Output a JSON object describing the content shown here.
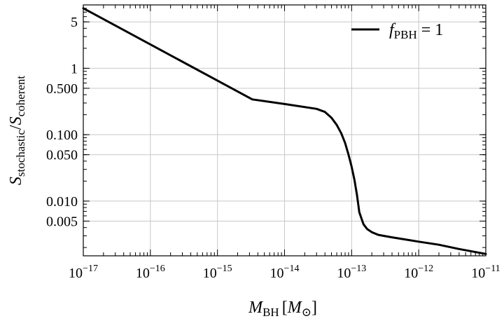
{
  "chart_data": {
    "type": "line",
    "x_scale": "log",
    "y_scale": "log",
    "xlim": [
      1e-17,
      1e-11
    ],
    "ylim": [
      0.0015,
      9
    ],
    "grid": true,
    "legend_position": "top-right",
    "xlabel": {
      "main": "M",
      "sub": "BH",
      "unit_open": "[",
      "unit_main": "M",
      "unit_sub": "⊙",
      "unit_close": "]"
    },
    "ylabel": {
      "num_main": "S",
      "num_sub": "stochastic",
      "slash": "/",
      "den_main": "S",
      "den_sub": "coherent"
    },
    "x_ticks": [
      {
        "value": 1e-17,
        "base": "10",
        "exp": "−17"
      },
      {
        "value": 1e-16,
        "base": "10",
        "exp": "−16"
      },
      {
        "value": 1e-15,
        "base": "10",
        "exp": "−15"
      },
      {
        "value": 1e-14,
        "base": "10",
        "exp": "−14"
      },
      {
        "value": 1e-13,
        "base": "10",
        "exp": "−13"
      },
      {
        "value": 1e-12,
        "base": "10",
        "exp": "−12"
      },
      {
        "value": 1e-11,
        "base": "10",
        "exp": "−11"
      }
    ],
    "y_ticks": [
      {
        "value": 5,
        "label": "5"
      },
      {
        "value": 1,
        "label": "1"
      },
      {
        "value": 0.5,
        "label": "0.500"
      },
      {
        "value": 0.1,
        "label": "0.100"
      },
      {
        "value": 0.05,
        "label": "0.050"
      },
      {
        "value": 0.01,
        "label": "0.010"
      },
      {
        "value": 0.005,
        "label": "0.005"
      }
    ],
    "series": [
      {
        "name_main": "f",
        "name_sub": "PBH",
        "name_suffix": " = 1",
        "color": "#000000",
        "x": [
          1e-17,
          3.3e-15,
          1e-14,
          3e-14,
          4e-14,
          5e-14,
          6e-14,
          7e-14,
          8e-14,
          9e-14,
          1e-13,
          1.1e-13,
          1.2e-13,
          1.3e-13,
          1.4e-13,
          1.5e-13,
          1.7e-13,
          2e-13,
          2.5e-13,
          3e-13,
          4e-13,
          5e-13,
          7e-13,
          1e-12,
          2e-12,
          4e-12,
          1e-11
        ],
        "y": [
          8,
          0.34,
          0.29,
          0.245,
          0.22,
          0.18,
          0.14,
          0.105,
          0.075,
          0.05,
          0.033,
          0.021,
          0.0125,
          0.0068,
          0.0055,
          0.0045,
          0.0038,
          0.0034,
          0.0031,
          0.003,
          0.00285,
          0.00275,
          0.0026,
          0.00245,
          0.0022,
          0.0019,
          0.0016
        ]
      }
    ]
  }
}
